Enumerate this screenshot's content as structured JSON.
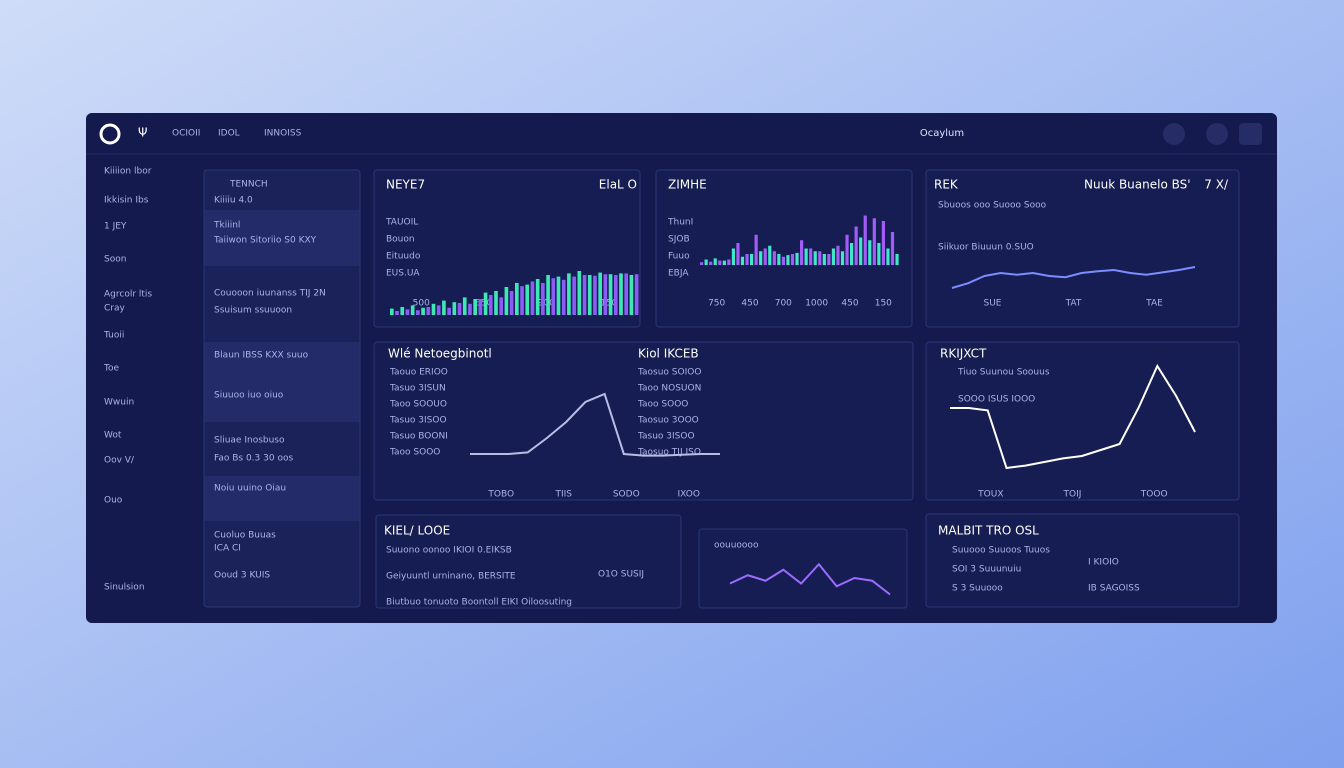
{
  "topbar": {
    "nav": [
      "OCIOII",
      "IDOL",
      "INNOISS"
    ],
    "title": "Ocaylum"
  },
  "sidebar": [
    "Kiiiion lbor",
    "Ikkisin Ibs",
    "1 JEY",
    "Soon",
    "Agrcolr ltis",
    "Cray",
    "Tuoii",
    "Toe",
    "Wwuin",
    "Wot",
    "Oov V/",
    "Ouo",
    "Sinulsion"
  ],
  "list_panel": {
    "title": "TENNCH",
    "rows": [
      "Kiiiiu 4.0",
      "Tkiiinl",
      "Taiiwon Sitoriio S0 KXY",
      "Couooon iuunanss TIJ 2N",
      "Ssuisum ssuuoon",
      "Blaun IBSS KXX suuo",
      "Siuuoo iuo oiuo",
      "Sliuae Inosbuso",
      "Fao Bs 0.3 30 oos",
      "Noiu uuino Oiau",
      "Cuoluo Buuas",
      "ICA CI",
      "Ooud 3 KUIS"
    ]
  },
  "panels": [
    {
      "title": "NEYE7",
      "subtitle": "ElaL O",
      "labels": [
        "TAUOIL",
        "Bouon",
        "Eituudo",
        "EUS.UA"
      ],
      "chart": {
        "type": "bar",
        "ylim": [
          0,
          100
        ],
        "xticks": [
          "500",
          "350",
          "900",
          "150"
        ],
        "series": [
          {
            "color": "#3ee8b5",
            "values": [
              8,
              10,
              12,
              9,
              14,
              18,
              16,
              22,
              20,
              28,
              30,
              35,
              40,
              38,
              45,
              50,
              48,
              52,
              55,
              50,
              53,
              51,
              52,
              50
            ]
          },
          {
            "color": "#8b5cf6",
            "values": [
              5,
              7,
              6,
              10,
              12,
              9,
              15,
              14,
              20,
              25,
              22,
              30,
              36,
              42,
              40,
              46,
              44,
              48,
              50,
              49,
              51,
              50,
              52,
              51
            ]
          }
        ]
      }
    },
    {
      "title": "ZIMHE",
      "labels": [
        "ThunI",
        "SJOB",
        "Fuuo",
        "EBJA"
      ],
      "chart": {
        "type": "bar",
        "ylim": [
          0,
          100
        ],
        "xticks": [
          "750",
          "450",
          "700",
          "1000",
          "450",
          "150"
        ],
        "series": [
          {
            "color": "#a35cf7",
            "values": [
              5,
              6,
              8,
              10,
              40,
              20,
              55,
              30,
              25,
              15,
              20,
              45,
              30,
              25,
              20,
              35,
              55,
              70,
              90,
              85,
              80,
              60
            ]
          },
          {
            "color": "#3ee8c8",
            "values": [
              10,
              12,
              8,
              30,
              15,
              20,
              25,
              35,
              20,
              18,
              22,
              30,
              25,
              20,
              30,
              25,
              40,
              50,
              45,
              40,
              30,
              20
            ]
          }
        ]
      }
    },
    {
      "title": "REK",
      "subtitle": "Nuuk Buanelo BS'",
      "subtitle2": "7 X/",
      "labels": [
        "Sbuoos ooo Suooo Sooo",
        "Siikuor Biuuun 0.SUO"
      ],
      "chart": {
        "type": "line",
        "ylim": [
          0,
          100
        ],
        "xticks": [
          "SUE",
          "TAT",
          "TAE"
        ],
        "series": [
          {
            "color": "#7c8cff",
            "values": [
              20,
              28,
              40,
              45,
              42,
              45,
              40,
              38,
              45,
              48,
              50,
              45,
              42,
              46,
              50,
              55
            ]
          }
        ]
      }
    },
    {
      "title": "Wlé Netoegbinotl",
      "subtitle": "Kiol IKCEB",
      "labels": [
        "Taouo ERIOO",
        "Tasuo 3ISUN",
        "Taoo SOOUO",
        "Tasuo 3ISOO",
        "Tasuo BOONI",
        "Taoo SOOO"
      ],
      "labels2": [
        "Taosuo SOIOO",
        "Taoo NOSUON",
        "Taoo SOOO",
        "Taosuo 3OOO",
        "Tasuo 3ISOO",
        "Taosuo TIJ ISO"
      ],
      "chart": {
        "type": "line",
        "ylim": [
          0,
          100
        ],
        "xticks": [
          "TOBO",
          "TIIS",
          "SODO",
          "IXOO"
        ],
        "series": [
          {
            "color": "#b8bde6",
            "values": [
              20,
              20,
              20,
              22,
              40,
              60,
              85,
              95,
              20,
              18,
              18,
              19,
              20,
              20
            ]
          }
        ]
      }
    },
    {
      "title": "RKIJXCT",
      "labels": [
        "Tiuo Suunou Soouus",
        "SOOO ISUS IOOO"
      ],
      "chart": {
        "type": "line",
        "ylim": [
          0,
          100
        ],
        "xticks": [
          "TOUX",
          "TOIJ",
          "TOOO"
        ],
        "series": [
          {
            "color": "#ffffff",
            "values": [
              60,
              60,
              58,
              10,
              12,
              15,
              18,
              20,
              25,
              30,
              60,
              95,
              70,
              40
            ]
          }
        ]
      }
    },
    {
      "title": "KIEL/ LOOE",
      "labels": [
        "Suuono oonoo IKIOI 0.EIKSB",
        "Geiyuuntl urninano, BERSITE",
        "Biutbuo tonuoto Boontoll EIKI Oiloosuting"
      ],
      "labels2": [
        "O1O SUSIJ"
      ]
    },
    {
      "title": "",
      "labels": [
        "oouuoooo"
      ],
      "chart": {
        "type": "line",
        "ylim": [
          0,
          100
        ],
        "xticks": [],
        "series": [
          {
            "color": "#9b6cff",
            "values": [
              30,
              45,
              35,
              55,
              30,
              65,
              25,
              40,
              35,
              10
            ]
          }
        ]
      }
    },
    {
      "title": "MALBIT TRO OSL",
      "labels": [
        "Suuooo Suuoos Tuuos",
        "SOI 3 Suuunuiu",
        "S 3 Suuooo"
      ],
      "labels2": [
        "I KIOIO",
        "IB SAGOISS"
      ]
    }
  ]
}
